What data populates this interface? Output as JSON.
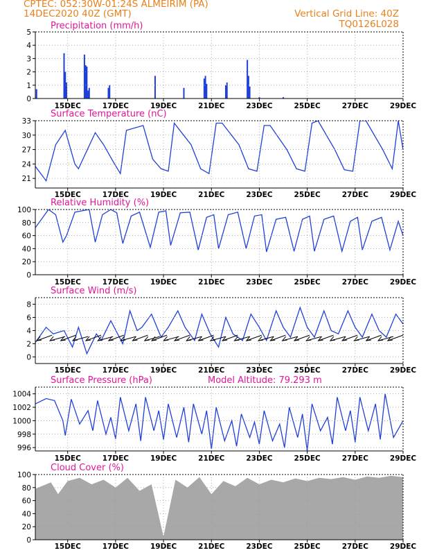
{
  "header": {
    "line1_left": "CPTEC:   052:30W-01:24S   ALMEIRIM (PA)",
    "line2_left": "14DEC2020 40Z (GMT)",
    "line1_right": "Vertical Grid Line: 40Z",
    "line2_right": "TQ0126L028"
  },
  "colors": {
    "header": "#e8801c",
    "title": "#e0169a",
    "series": "#1f3fd9",
    "cloud": "#a8a8a8",
    "wind_arrow": "#000000",
    "grid": "#9a9a9a"
  },
  "x_axis": {
    "tick_labels": [
      "15DEC",
      "17DEC",
      "19DEC",
      "21DEC",
      "23DEC",
      "25DEC",
      "27DEC",
      "29DEC"
    ],
    "tick_days": [
      1,
      3,
      5,
      7,
      9,
      11,
      13,
      15
    ],
    "day_range": [
      -0.35,
      15
    ]
  },
  "chart_data": [
    {
      "id": "precip",
      "type": "bar",
      "title": "Precipitation (mm/h)",
      "ylim": [
        0,
        5
      ],
      "yticks": [
        0,
        1,
        2,
        3,
        4,
        5
      ],
      "grid": true,
      "x_days": [
        -0.3,
        0.85,
        0.9,
        0.95,
        1.7,
        1.75,
        1.8,
        1.85,
        1.9,
        2.7,
        2.75,
        4.65,
        5.85,
        6.7,
        6.75,
        6.8,
        7.6,
        7.65,
        8.5,
        8.55,
        8.6,
        9.0,
        10.0
      ],
      "values": [
        0.7,
        3.4,
        2.0,
        1.2,
        3.3,
        2.5,
        2.4,
        0.6,
        0.8,
        0.8,
        1.0,
        1.7,
        0.8,
        1.5,
        1.7,
        1.1,
        1.0,
        1.2,
        2.9,
        1.7,
        0.9,
        0.1,
        0.1
      ]
    },
    {
      "id": "temp",
      "type": "line",
      "title": "Surface Temperature (nC)",
      "ylim": [
        19,
        33
      ],
      "yticks": [
        21,
        24,
        27,
        30,
        33
      ],
      "grid": true,
      "x_days": [
        -0.35,
        0.1,
        0.5,
        0.9,
        1.3,
        1.45,
        2.15,
        2.5,
        2.9,
        3.2,
        3.45,
        4.15,
        4.55,
        4.9,
        5.2,
        5.45,
        6.15,
        6.55,
        6.9,
        7.2,
        7.45,
        8.15,
        8.55,
        8.9,
        9.2,
        9.45,
        10.15,
        10.55,
        10.9,
        11.2,
        11.45,
        12.15,
        12.55,
        12.9,
        13.2,
        13.45,
        14.15,
        14.55,
        14.8,
        15.0
      ],
      "values": [
        23.5,
        20.5,
        28,
        31,
        24,
        23,
        30.5,
        28,
        24.5,
        22,
        31,
        32,
        25,
        23,
        22.5,
        32.5,
        28,
        23,
        22,
        32.5,
        32.5,
        28,
        23,
        22.5,
        32,
        32,
        27,
        23,
        22.5,
        32.5,
        33,
        27,
        22.8,
        22.5,
        33,
        33,
        27,
        23,
        33,
        27
      ]
    },
    {
      "id": "rh",
      "type": "line",
      "title": "Relative Humidity (%)",
      "ylim": [
        0,
        100
      ],
      "yticks": [
        0,
        20,
        40,
        60,
        80,
        100
      ],
      "grid": true,
      "x_days": [
        -0.35,
        0.2,
        0.5,
        0.8,
        0.95,
        1.3,
        1.6,
        1.9,
        2.15,
        2.45,
        2.8,
        3.05,
        3.3,
        3.65,
        4.0,
        4.45,
        4.8,
        5.1,
        5.3,
        5.7,
        6.1,
        6.45,
        6.8,
        7.1,
        7.3,
        7.7,
        8.1,
        8.45,
        8.8,
        9.1,
        9.3,
        9.7,
        10.1,
        10.45,
        10.8,
        11.1,
        11.3,
        11.7,
        12.1,
        12.45,
        12.8,
        13.1,
        13.3,
        13.7,
        14.1,
        14.45,
        14.8,
        15.0
      ],
      "values": [
        72,
        100,
        92,
        50,
        60,
        96,
        98,
        100,
        50,
        92,
        100,
        95,
        48,
        90,
        96,
        42,
        96,
        98,
        45,
        95,
        96,
        38,
        88,
        92,
        40,
        92,
        96,
        40,
        90,
        92,
        35,
        85,
        88,
        36,
        85,
        90,
        36,
        85,
        90,
        36,
        82,
        88,
        38,
        82,
        88,
        38,
        82,
        60
      ]
    },
    {
      "id": "wind",
      "type": "line",
      "title": "Surface Wind (m/s)",
      "ylim": [
        -1,
        9
      ],
      "yticks": [
        0,
        2,
        4,
        6,
        8
      ],
      "grid": true,
      "x_days": [
        -0.35,
        0.1,
        0.4,
        0.85,
        1.2,
        1.45,
        1.8,
        2.2,
        2.4,
        2.8,
        3.3,
        3.6,
        3.9,
        4.1,
        4.5,
        4.9,
        5.2,
        5.6,
        5.9,
        6.3,
        6.6,
        6.95,
        7.3,
        7.6,
        7.9,
        8.3,
        8.65,
        9.0,
        9.3,
        9.7,
        10.0,
        10.3,
        10.7,
        11.0,
        11.3,
        11.7,
        12.0,
        12.3,
        12.7,
        13.0,
        13.3,
        13.7,
        14.0,
        14.3,
        14.7,
        15.0
      ],
      "values": [
        2.2,
        4.5,
        3.5,
        4.0,
        1.5,
        4.5,
        0.5,
        3.5,
        2.5,
        5.5,
        2.0,
        7.0,
        4.0,
        4.5,
        6.5,
        3.0,
        4.5,
        7.0,
        4.5,
        2.5,
        6.5,
        3.5,
        1.5,
        6.0,
        3.5,
        2.5,
        6.5,
        4.5,
        2.5,
        7.0,
        4.5,
        3.0,
        7.5,
        4.5,
        3.0,
        7.0,
        4.0,
        3.5,
        7.0,
        4.5,
        3.0,
        6.5,
        4.0,
        3.0,
        6.5,
        5.0
      ],
      "arrows_x_days": [
        0.0,
        0.55,
        1.0,
        1.5,
        2.05,
        2.55,
        3.0,
        3.5,
        4.0,
        4.5,
        4.8,
        5.3,
        5.75,
        6.25,
        6.75,
        7.25,
        7.75,
        8.25,
        8.75,
        9.25,
        9.75,
        10.25,
        10.75,
        11.25,
        11.75,
        12.25,
        12.75,
        13.25,
        13.75,
        14.25,
        14.65
      ]
    },
    {
      "id": "pressure",
      "type": "line",
      "title": "Surface Pressure (hPa)",
      "annotation": "Model Altitude: 79.293 m",
      "ylim": [
        995.5,
        1005
      ],
      "yticks": [
        996,
        998,
        1000,
        1002,
        1004
      ],
      "grid": true,
      "x_days": [
        -0.35,
        0.1,
        0.45,
        0.8,
        0.9,
        1.15,
        1.5,
        1.85,
        2.05,
        2.25,
        2.6,
        2.8,
        3.0,
        3.2,
        3.55,
        3.85,
        4.05,
        4.25,
        4.6,
        4.8,
        5.0,
        5.2,
        5.55,
        5.85,
        6.05,
        6.25,
        6.6,
        6.8,
        7.0,
        7.2,
        7.55,
        7.85,
        8.05,
        8.25,
        8.6,
        8.8,
        9.0,
        9.2,
        9.55,
        9.85,
        10.05,
        10.25,
        10.6,
        10.8,
        11.0,
        11.2,
        11.55,
        11.85,
        12.05,
        12.25,
        12.6,
        12.8,
        13.0,
        13.2,
        13.55,
        13.85,
        14.05,
        14.25,
        14.6,
        15.0
      ],
      "values": [
        1002.5,
        1003.3,
        1003.0,
        1000.0,
        997.8,
        1003.2,
        999.5,
        1001.5,
        998.5,
        1003.0,
        998.0,
        1000.5,
        997.3,
        1003.5,
        998.5,
        1002.5,
        997.0,
        1003.5,
        998.5,
        1001.5,
        997.2,
        1002.5,
        997.5,
        1002.0,
        996.8,
        1002.5,
        998.0,
        1001.5,
        995.8,
        1002.0,
        997.0,
        1000.0,
        996.2,
        1001.0,
        997.5,
        999.8,
        996.5,
        1001.5,
        997.0,
        999.5,
        996.0,
        1002.0,
        997.5,
        1001.0,
        995.5,
        1002.5,
        998.5,
        1000.5,
        996.5,
        1003.5,
        998.5,
        1001.5,
        996.8,
        1003.5,
        998.5,
        1002.5,
        997.2,
        1004.0,
        997.5,
        1000.0
      ]
    },
    {
      "id": "cloud",
      "type": "area",
      "title": "Cloud Cover (%)",
      "ylim": [
        0,
        100
      ],
      "yticks": [
        0,
        20,
        40,
        60,
        80,
        100
      ],
      "grid": true,
      "x_days": [
        -0.35,
        0.3,
        0.6,
        1.0,
        1.5,
        2.0,
        2.5,
        3.0,
        3.5,
        4.0,
        4.5,
        5.0,
        5.5,
        6.0,
        6.5,
        7.0,
        7.5,
        8.0,
        8.5,
        9.0,
        9.5,
        10.0,
        10.5,
        11.0,
        11.5,
        12.0,
        12.5,
        13.0,
        13.5,
        14.0,
        14.5,
        15.0
      ],
      "values": [
        78,
        88,
        70,
        90,
        95,
        85,
        92,
        80,
        95,
        75,
        85,
        5,
        92,
        80,
        96,
        70,
        90,
        82,
        95,
        85,
        92,
        88,
        94,
        90,
        95,
        93,
        96,
        92,
        97,
        95,
        98,
        96
      ]
    }
  ]
}
